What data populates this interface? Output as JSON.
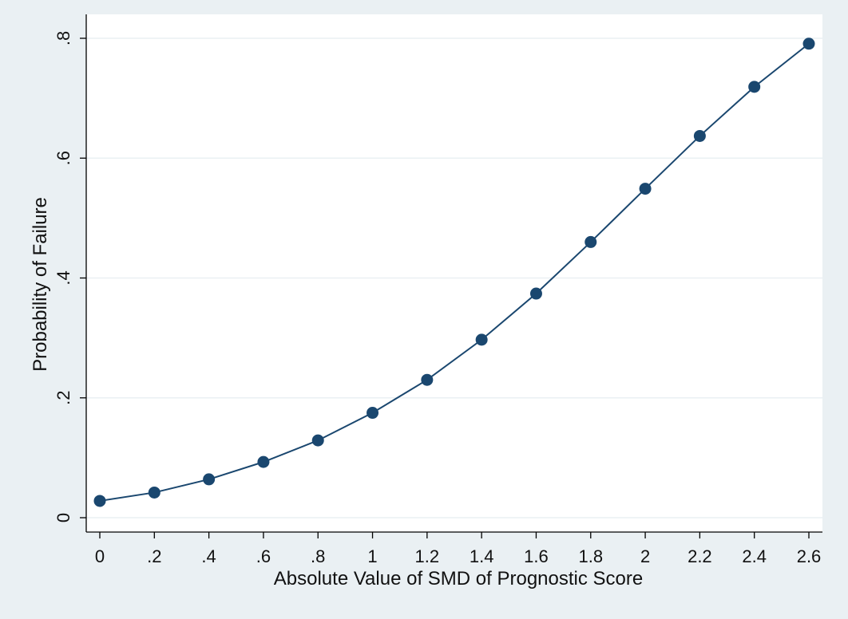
{
  "colors": {
    "outer_background": "#eaf0f3",
    "plot_background": "#ffffff",
    "series": "#1a476f",
    "gridline": "#eaf0f3",
    "axis": "#000000"
  },
  "chart_data": {
    "type": "line",
    "title": "",
    "xlabel": "Absolute Value of SMD of Prognostic Score",
    "ylabel": "Probability of Failure",
    "xlim": [
      0,
      2.6
    ],
    "ylim": [
      0,
      0.8
    ],
    "x_ticks": [
      0,
      0.2,
      0.4,
      0.6,
      0.8,
      1.0,
      1.2,
      1.4,
      1.6,
      1.8,
      2.0,
      2.2,
      2.4,
      2.6
    ],
    "x_tick_labels": [
      "0",
      ".2",
      ".4",
      ".6",
      ".8",
      "1",
      "1.2",
      "1.4",
      "1.6",
      "1.8",
      "2",
      "2.2",
      "2.4",
      "2.6"
    ],
    "y_ticks": [
      0,
      0.2,
      0.4,
      0.6,
      0.8
    ],
    "y_tick_labels": [
      "0",
      ".2",
      ".4",
      ".6",
      ".8"
    ],
    "y_tick_labels_rotated": true,
    "grid": "horizontal",
    "markers": true,
    "legend": "none",
    "series": [
      {
        "x": [
          0,
          0.2,
          0.4,
          0.6,
          0.8,
          1.0,
          1.2,
          1.4,
          1.6,
          1.8,
          2.0,
          2.2,
          2.4,
          2.6
        ],
        "y": [
          0.028,
          0.042,
          0.064,
          0.093,
          0.129,
          0.175,
          0.23,
          0.297,
          0.374,
          0.46,
          0.549,
          0.637,
          0.719,
          0.791
        ]
      }
    ]
  }
}
